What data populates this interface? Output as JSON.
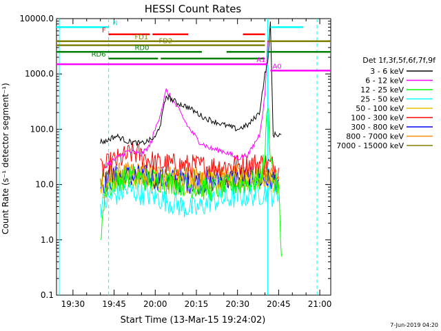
{
  "chart_data": {
    "type": "line",
    "title": "HESSI Count Rates",
    "xlabel": "Start Time (13-Mar-15 19:24:02)",
    "ylabel": "Count Rate (s⁻¹ detector segment⁻¹)",
    "y_scale": "log",
    "ylim": [
      0.1,
      10000
    ],
    "xlim": [
      "19:24",
      "21:04"
    ],
    "grid": false,
    "x_ticks": [
      "19:30",
      "19:45",
      "20:00",
      "20:15",
      "20:30",
      "20:45",
      "21:00"
    ],
    "y_ticks": [
      "0.1",
      "1.0",
      "10.0",
      "100.0",
      "1000.0",
      "10000.0"
    ],
    "legend_title": "Det 1f,3f,5f,6f,7f,9f",
    "legend_placement": "right",
    "footer_date": "7-Jun-2019 04:20",
    "series": [
      {
        "name": "3 - 6 keV",
        "color": "#000000",
        "x": [
          "19:40",
          "19:42",
          "19:44",
          "19:46",
          "19:50",
          "19:55",
          "20:00",
          "20:02",
          "20:04",
          "20:08",
          "20:12",
          "20:18",
          "20:25",
          "20:30",
          "20:34",
          "20:38",
          "20:40",
          "20:41",
          "20:42",
          "20:43",
          "20:44",
          "20:46"
        ],
        "y": [
          60,
          60,
          70,
          75,
          60,
          55,
          70,
          130,
          400,
          300,
          250,
          160,
          120,
          100,
          120,
          200,
          1000,
          1600,
          8000,
          80,
          80,
          80
        ]
      },
      {
        "name": "6 - 12 keV",
        "color": "#ff00ff",
        "x": [
          "19:42",
          "19:46",
          "19:50",
          "19:55",
          "19:58",
          "20:00",
          "20:02",
          "20:04",
          "20:08",
          "20:12",
          "20:16",
          "20:20",
          "20:25",
          "20:30",
          "20:34",
          "20:38",
          "20:40",
          "20:41"
        ],
        "y": [
          22,
          30,
          40,
          35,
          50,
          100,
          200,
          500,
          250,
          110,
          60,
          45,
          40,
          30,
          35,
          80,
          400,
          4000
        ]
      },
      {
        "name": "12 - 25 keV",
        "color": "#00ff00",
        "x": [
          "19:40",
          "19:42",
          "19:46",
          "19:50",
          "20:00",
          "20:10",
          "20:20",
          "20:30",
          "20:38",
          "20:40",
          "20:41",
          "20:42",
          "20:43",
          "20:45",
          "20:46"
        ],
        "y": [
          1.2,
          8,
          12,
          14,
          12,
          10,
          8,
          10,
          12,
          30,
          350,
          40,
          12,
          8,
          0.5
        ]
      },
      {
        "name": "25 - 50 keV",
        "color": "#00ffff",
        "x": [
          "19:40",
          "19:44",
          "19:50",
          "20:00",
          "20:10",
          "20:15",
          "20:20",
          "20:30",
          "20:40",
          "20:45"
        ],
        "y": [
          4,
          6,
          8,
          6,
          4,
          3.5,
          5,
          6,
          7,
          6
        ]
      },
      {
        "name": "50 - 100 keV",
        "color": "#e6c200",
        "x": [
          "19:40",
          "19:46",
          "19:55",
          "20:05",
          "20:15",
          "20:25",
          "20:35",
          "20:45"
        ],
        "y": [
          9,
          12,
          13,
          11,
          10,
          11,
          12,
          11
        ]
      },
      {
        "name": "100 - 300 keV",
        "color": "#ff0000",
        "x": [
          "19:40",
          "19:44",
          "19:48",
          "19:52",
          "19:56",
          "20:00",
          "20:10",
          "20:20",
          "20:30",
          "20:40",
          "20:45"
        ],
        "y": [
          18,
          25,
          30,
          38,
          32,
          24,
          22,
          21,
          22,
          24,
          20
        ]
      },
      {
        "name": "300 - 800 keV",
        "color": "#0000ff",
        "x": [
          "19:40",
          "19:46",
          "19:55",
          "20:05",
          "20:15",
          "20:25",
          "20:35",
          "20:45"
        ],
        "y": [
          10,
          14,
          14,
          12,
          11,
          12,
          13,
          12
        ]
      },
      {
        "name": "800 - 7000 keV",
        "color": "#ff8c00",
        "x": [
          "19:40",
          "19:46",
          "19:55",
          "20:05",
          "20:15",
          "20:25",
          "20:35",
          "20:45"
        ],
        "y": [
          12,
          15,
          16,
          14,
          13,
          14,
          15,
          14
        ]
      },
      {
        "name": "7000 - 15000 keV",
        "color": "#808000",
        "x": [
          "19:40",
          "19:46",
          "19:55",
          "20:05",
          "20:15",
          "20:25",
          "20:35",
          "20:45"
        ],
        "y": [
          11,
          14,
          15,
          13,
          12,
          13,
          14,
          13
        ]
      }
    ],
    "state_bars": [
      {
        "label": "N",
        "color": "#00ffff",
        "y": 7000,
        "segments": [
          [
            "19:24",
            "19:43"
          ],
          [
            "20:42",
            "20:54"
          ]
        ]
      },
      {
        "label": "F",
        "color": "#ff0000",
        "y": 5200,
        "segments": [
          [
            "19:43",
            "19:58"
          ],
          [
            "19:59",
            "20:12"
          ],
          [
            "20:32",
            "20:40"
          ]
        ]
      },
      {
        "label": "FD1",
        "color": "#808000",
        "y": 3900,
        "segments": [
          [
            "19:24",
            "20:40"
          ],
          [
            "20:41",
            "21:04"
          ]
        ]
      },
      {
        "label": "FD2",
        "color": "#808000",
        "y": 3300,
        "segments": [
          [
            "19:24",
            "20:40"
          ]
        ]
      },
      {
        "label": "RD0",
        "color": "#008000",
        "y": 2500,
        "segments": [
          [
            "19:24",
            "20:17"
          ],
          [
            "20:26",
            "20:40"
          ],
          [
            "20:41",
            "21:04"
          ]
        ]
      },
      {
        "label": "RD6",
        "color": "#008000",
        "y": 1900,
        "segments": [
          [
            "19:43",
            "20:01"
          ],
          [
            "20:02",
            "20:40"
          ]
        ]
      },
      {
        "label": "A1",
        "color": "#ff00ff",
        "y": 1500,
        "segments": [
          [
            "19:24",
            "20:41"
          ]
        ]
      },
      {
        "label": "A0",
        "color": "#ff00ff",
        "y": 1150,
        "segments": [
          [
            "20:42",
            "21:04"
          ]
        ]
      }
    ],
    "vertical_lines": [
      {
        "x": "19:25",
        "color": "#00ffff",
        "style": "solid"
      },
      {
        "x": "19:43",
        "color": "#00ffff",
        "style": "dashed"
      },
      {
        "x": "20:41",
        "color": "#00ffff",
        "style": "solid"
      },
      {
        "x": "20:59",
        "color": "#00ffff",
        "style": "dashed"
      }
    ]
  }
}
